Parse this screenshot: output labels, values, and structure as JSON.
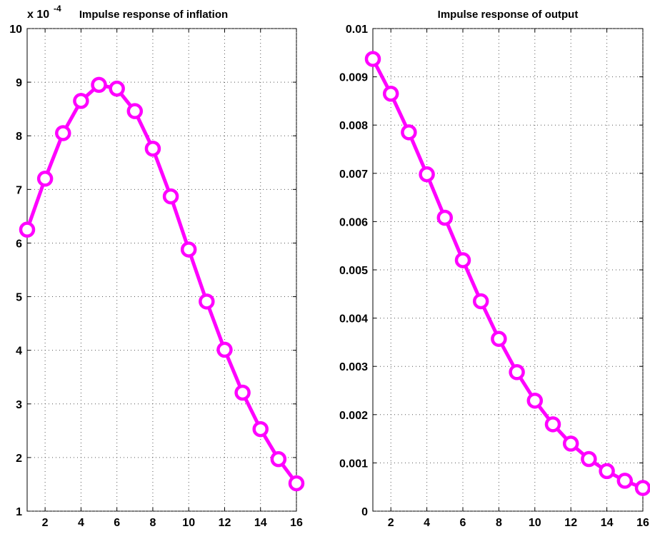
{
  "chart_data": [
    {
      "type": "line",
      "title": "Impulse response of inflation",
      "exponent_base": "x 10",
      "exponent_power": "-4",
      "xlabel": "",
      "ylabel": "",
      "xlim": [
        1,
        16
      ],
      "ylim": [
        1,
        10
      ],
      "xticks": [
        2,
        4,
        6,
        8,
        10,
        12,
        14,
        16
      ],
      "xtick_labels": [
        "2",
        "4",
        "6",
        "8",
        "10",
        "12",
        "14",
        "16"
      ],
      "yticks": [
        1,
        2,
        3,
        4,
        5,
        6,
        7,
        8,
        9,
        10
      ],
      "ytick_labels": [
        "1",
        "2",
        "3",
        "4",
        "5",
        "6",
        "7",
        "8",
        "9",
        "10"
      ],
      "grid": true,
      "color": "#ff00ff",
      "marker": "circle",
      "x": [
        1,
        2,
        3,
        4,
        5,
        6,
        7,
        8,
        9,
        10,
        11,
        12,
        13,
        14,
        15,
        16
      ],
      "y": [
        6.25,
        7.2,
        8.05,
        8.65,
        8.95,
        8.88,
        8.46,
        7.76,
        6.87,
        5.88,
        4.91,
        4.01,
        3.21,
        2.53,
        1.97,
        1.52
      ]
    },
    {
      "type": "line",
      "title": "Impulse response of output",
      "xlabel": "",
      "ylabel": "",
      "xlim": [
        1,
        16
      ],
      "ylim": [
        0,
        0.01
      ],
      "xticks": [
        2,
        4,
        6,
        8,
        10,
        12,
        14,
        16
      ],
      "xtick_labels": [
        "2",
        "4",
        "6",
        "8",
        "10",
        "12",
        "14",
        "16"
      ],
      "yticks": [
        0,
        0.001,
        0.002,
        0.003,
        0.004,
        0.005,
        0.006,
        0.007,
        0.008,
        0.009,
        0.01
      ],
      "ytick_labels": [
        "0",
        "0.001",
        "0.002",
        "0.003",
        "0.004",
        "0.005",
        "0.006",
        "0.007",
        "0.008",
        "0.009",
        "0.01"
      ],
      "grid": true,
      "color": "#ff00ff",
      "marker": "circle",
      "x": [
        1,
        2,
        3,
        4,
        5,
        6,
        7,
        8,
        9,
        10,
        11,
        12,
        13,
        14,
        15,
        16
      ],
      "y": [
        0.00937,
        0.00865,
        0.00785,
        0.00698,
        0.00608,
        0.0052,
        0.00435,
        0.00357,
        0.00288,
        0.00229,
        0.0018,
        0.0014,
        0.00108,
        0.00083,
        0.00063,
        0.00048
      ]
    }
  ]
}
